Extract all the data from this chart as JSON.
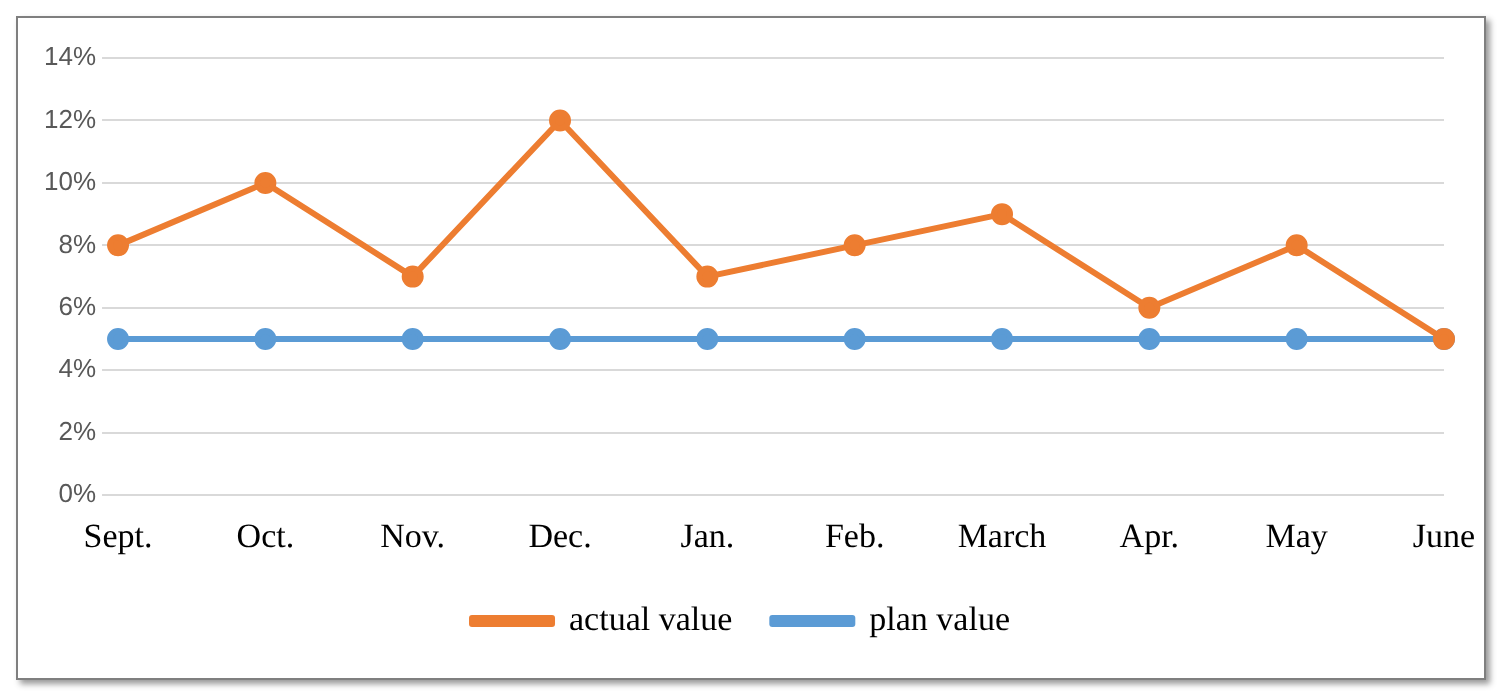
{
  "chart_data": {
    "type": "line",
    "categories": [
      "Sept.",
      "Oct.",
      "Nov.",
      "Dec.",
      "Jan.",
      "Feb.",
      "March",
      "Apr.",
      "May",
      "June"
    ],
    "series": [
      {
        "name": "plan value",
        "color": "#5b9bd5",
        "values": [
          5,
          5,
          5,
          5,
          5,
          5,
          5,
          5,
          5,
          5
        ]
      },
      {
        "name": "actual value",
        "color": "#ed7d31",
        "values": [
          8,
          10,
          7,
          12,
          7,
          8,
          9,
          6,
          8,
          5
        ]
      }
    ],
    "ylim": [
      0,
      14
    ],
    "yticks": [
      {
        "value": 0,
        "label": "0%"
      },
      {
        "value": 2,
        "label": "2%"
      },
      {
        "value": 4,
        "label": "4%"
      },
      {
        "value": 6,
        "label": "6%"
      },
      {
        "value": 8,
        "label": "8%"
      },
      {
        "value": 10,
        "label": "10%"
      },
      {
        "value": 12,
        "label": "12%"
      },
      {
        "value": 14,
        "label": "14%"
      }
    ],
    "grid": "y",
    "legend": "bottom",
    "marker": "circle",
    "line_style": "solid"
  }
}
